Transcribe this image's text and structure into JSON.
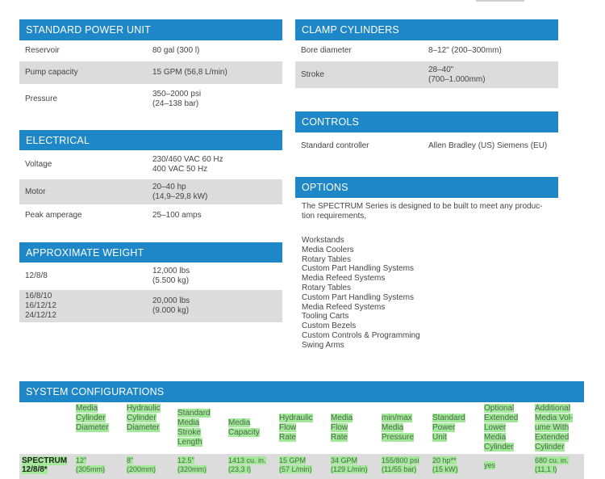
{
  "standard_power_unit": {
    "title": "STANDARD POWER UNIT",
    "rows": [
      {
        "label": "Reservoir",
        "value": [
          "80 gal (300 l)"
        ]
      },
      {
        "label": "Pump capacity",
        "value": [
          "15 GPM (56,8 L/min)"
        ]
      },
      {
        "label": "Pressure",
        "value": [
          "350–2000 psi",
          "(24–138 bar)"
        ]
      }
    ]
  },
  "electrical": {
    "title": "ELECTRICAL",
    "rows": [
      {
        "label": "Voltage",
        "value": [
          "230/460 VAC 60 Hz",
          "400 VAC 50 Hz"
        ]
      },
      {
        "label": "Motor",
        "value": [
          "20–40 hp",
          "(14,9–29,8 kW)"
        ]
      },
      {
        "label": "Peak amperage",
        "value": [
          "25–100 amps"
        ]
      }
    ]
  },
  "approximate_weight": {
    "title": "APPROXIMATE WEIGHT",
    "rows": [
      {
        "label": [
          "12/8/8"
        ],
        "value": [
          "12,000 lbs",
          "(5.500 kg)"
        ]
      },
      {
        "label": [
          "16/8/10",
          "16/12/12",
          "24/12/12"
        ],
        "value": [
          "20,000 lbs",
          "(9.000 kg)"
        ]
      }
    ]
  },
  "clamp_cylinders": {
    "title": "CLAMP CYLINDERS",
    "rows": [
      {
        "label": "Bore diameter",
        "value": [
          "8–12\" (200–300mm)"
        ]
      },
      {
        "label": "Stroke",
        "value": [
          "28–40\"",
          "(700–1.000mm)"
        ]
      }
    ]
  },
  "controls": {
    "title": "CONTROLS",
    "rows": [
      {
        "label": "Standard controller",
        "value": [
          "Allen Bradley (US) Siemens (EU)"
        ]
      }
    ]
  },
  "options": {
    "title": "OPTIONS",
    "intro": [
      "The SPECTRUM Series is designed to be built to meet any produc-",
      "tion requirements,"
    ],
    "items": [
      "Workstands",
      "Media Coolers",
      "Rotary Tables",
      "Custom Part Handling Systems",
      "Media Refeed Systems",
      "Rotary Tables",
      "Custom Part Handling Systems",
      "Media Refeed Systems",
      "Tooling Carts",
      "Custom Bezels",
      "Custom Controls & Programming",
      "Swing Arms"
    ]
  },
  "system_configurations": {
    "title": "SYSTEM CONFIGURATIONS",
    "columns": [
      [
        "Media",
        "Cylinder",
        "Diameter"
      ],
      [
        "Hydraulic",
        "Cylinder",
        "Diameter"
      ],
      [
        "Standard",
        "Media",
        "Stroke",
        "Length"
      ],
      [
        "Media",
        "Capacity"
      ],
      [
        "Hydraulic",
        "Flow",
        "Rate"
      ],
      [
        "Media",
        "Flow",
        "Rate"
      ],
      [
        "min/max",
        "Media",
        "Pressure"
      ],
      [
        "Standard",
        "Power",
        "Unit"
      ],
      [
        "Optional",
        "Extended",
        "Lower",
        "Media",
        "Cylinder"
      ],
      [
        "Additional",
        "Media Vol-",
        "ume With",
        "Extended",
        "Cylinder"
      ]
    ],
    "row": {
      "model": [
        "SPECTRUM",
        "12/8/8*"
      ],
      "values": [
        [
          "12\"",
          "(305mm)"
        ],
        [
          "8\"",
          "(200mm)"
        ],
        [
          "12.5\"",
          "(320mm)"
        ],
        [
          "1413 cu. in.",
          "(23,3 l)"
        ],
        [
          "15 GPM",
          "(57 L/min)"
        ],
        [
          "34 GPM",
          "(129 L/min)"
        ],
        [
          "155/800 psi",
          "(11/55 bar)"
        ],
        [
          "20 hp**",
          "(15 kW)"
        ],
        [
          "yes"
        ],
        [
          "680 cu. in.",
          "(11,1 l)"
        ]
      ]
    }
  }
}
